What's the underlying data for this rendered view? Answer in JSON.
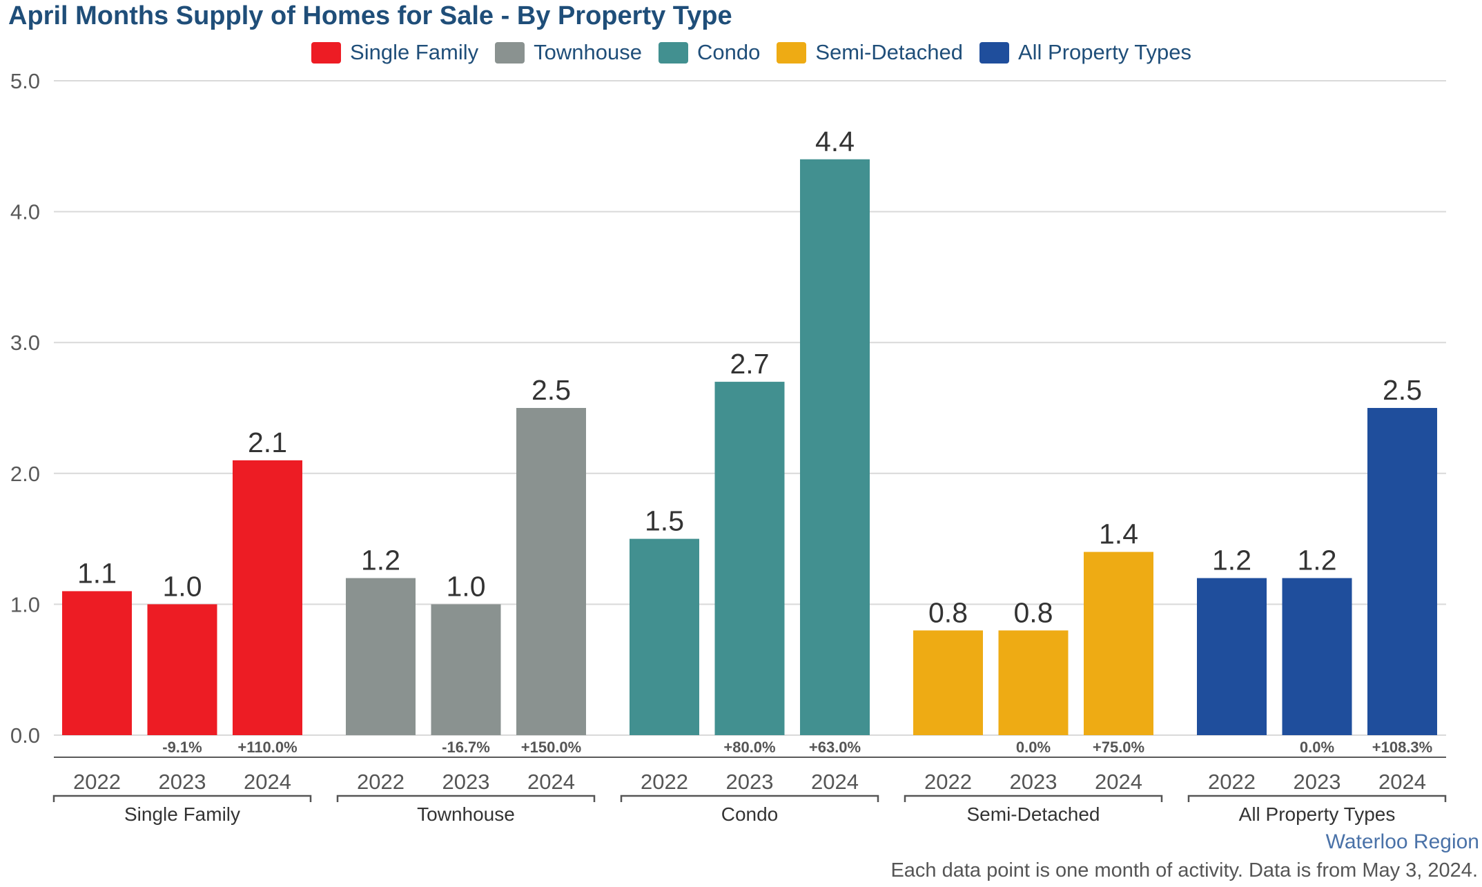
{
  "chart_data": {
    "type": "bar",
    "title": "April Months Supply of Homes for Sale - By Property Type",
    "ylim": [
      0,
      5
    ],
    "yticks": [
      "0.0",
      "1.0",
      "2.0",
      "3.0",
      "4.0",
      "5.0"
    ],
    "grid": true,
    "legend_position": "top-center",
    "groups": [
      {
        "name": "Single Family",
        "color": "#ed1c24",
        "years": [
          "2022",
          "2023",
          "2024"
        ],
        "values": [
          1.1,
          1.0,
          2.1
        ],
        "labels": [
          "1.1",
          "1.0",
          "2.1"
        ],
        "changes": [
          "",
          "-9.1%",
          "+110.0%"
        ]
      },
      {
        "name": "Townhouse",
        "color": "#8a9290",
        "years": [
          "2022",
          "2023",
          "2024"
        ],
        "values": [
          1.2,
          1.0,
          2.5
        ],
        "labels": [
          "1.2",
          "1.0",
          "2.5"
        ],
        "changes": [
          "",
          "-16.7%",
          "+150.0%"
        ]
      },
      {
        "name": "Condo",
        "color": "#429090",
        "years": [
          "2022",
          "2023",
          "2024"
        ],
        "values": [
          1.5,
          2.7,
          4.4
        ],
        "labels": [
          "1.5",
          "2.7",
          "4.4"
        ],
        "changes": [
          "",
          "+80.0%",
          "+63.0%"
        ]
      },
      {
        "name": "Semi-Detached",
        "color": "#eeab14",
        "years": [
          "2022",
          "2023",
          "2024"
        ],
        "values": [
          0.8,
          0.8,
          1.4
        ],
        "labels": [
          "0.8",
          "0.8",
          "1.4"
        ],
        "changes": [
          "",
          "0.0%",
          "+75.0%"
        ]
      },
      {
        "name": "All Property Types",
        "color": "#1f4e9c",
        "years": [
          "2022",
          "2023",
          "2024"
        ],
        "values": [
          1.2,
          1.2,
          2.5
        ],
        "labels": [
          "1.2",
          "1.2",
          "2.5"
        ],
        "changes": [
          "",
          "0.0%",
          "+108.3%"
        ]
      }
    ]
  },
  "legend": [
    {
      "label": "Single Family",
      "color": "#ed1c24"
    },
    {
      "label": "Townhouse",
      "color": "#8a9290"
    },
    {
      "label": "Condo",
      "color": "#429090"
    },
    {
      "label": "Semi-Detached",
      "color": "#eeab14"
    },
    {
      "label": "All Property Types",
      "color": "#1f4e9c"
    }
  ],
  "region": "Waterloo Region",
  "footnote": "Each data point is one month of activity. Data is from May 3, 2024."
}
